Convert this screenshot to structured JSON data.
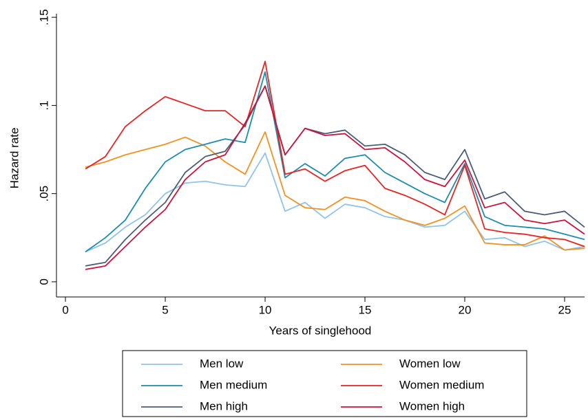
{
  "chart_data": {
    "type": "line",
    "ylabel": "Hazard rate",
    "xlabel": "Years of singlehood",
    "x": [
      1,
      2,
      3,
      4,
      5,
      6,
      7,
      8,
      9,
      10,
      11,
      12,
      13,
      14,
      15,
      16,
      17,
      18,
      19,
      20,
      21,
      22,
      23,
      24,
      25,
      26
    ],
    "series": [
      {
        "name": "Men low",
        "color": "#8fc3ea",
        "values": [
          0.017,
          0.022,
          0.031,
          0.038,
          0.05,
          0.056,
          0.057,
          0.055,
          0.054,
          0.073,
          0.04,
          0.045,
          0.036,
          0.044,
          0.042,
          0.037,
          0.035,
          0.031,
          0.032,
          0.04,
          0.024,
          0.025,
          0.02,
          0.023,
          0.018,
          0.02
        ]
      },
      {
        "name": "Women low",
        "color": "#f5901e",
        "values": [
          0.065,
          0.068,
          0.072,
          0.075,
          0.078,
          0.082,
          0.077,
          0.068,
          0.061,
          0.085,
          0.049,
          0.042,
          0.041,
          0.048,
          0.046,
          0.04,
          0.035,
          0.032,
          0.036,
          0.043,
          0.022,
          0.021,
          0.021,
          0.026,
          0.018,
          0.019
        ]
      },
      {
        "name": "Men medium",
        "color": "#1a8caf",
        "values": [
          0.017,
          0.025,
          0.035,
          0.053,
          0.068,
          0.075,
          0.078,
          0.081,
          0.079,
          0.119,
          0.059,
          0.067,
          0.06,
          0.07,
          0.072,
          0.062,
          0.056,
          0.05,
          0.045,
          0.067,
          0.037,
          0.032,
          0.031,
          0.03,
          0.027,
          0.024
        ]
      },
      {
        "name": "Women medium",
        "color": "#e8231f",
        "values": [
          0.064,
          0.071,
          0.088,
          0.097,
          0.105,
          0.101,
          0.097,
          0.097,
          0.088,
          0.125,
          0.061,
          0.064,
          0.057,
          0.063,
          0.066,
          0.053,
          0.049,
          0.044,
          0.038,
          0.066,
          0.03,
          0.028,
          0.027,
          0.025,
          0.024,
          0.02
        ]
      },
      {
        "name": "Men high",
        "color": "#4a5d75",
        "values": [
          0.009,
          0.011,
          0.024,
          0.035,
          0.045,
          0.062,
          0.071,
          0.074,
          0.089,
          0.111,
          0.072,
          0.087,
          0.084,
          0.086,
          0.077,
          0.078,
          0.072,
          0.062,
          0.058,
          0.075,
          0.047,
          0.051,
          0.04,
          0.038,
          0.04,
          0.031
        ]
      },
      {
        "name": "Women high",
        "color": "#d0103a",
        "values": [
          0.007,
          0.009,
          0.02,
          0.031,
          0.041,
          0.058,
          0.068,
          0.072,
          0.09,
          0.111,
          0.072,
          0.087,
          0.083,
          0.084,
          0.075,
          0.076,
          0.068,
          0.058,
          0.054,
          0.069,
          0.042,
          0.045,
          0.035,
          0.033,
          0.035,
          0.027
        ]
      }
    ],
    "xlim": [
      -0.45,
      26
    ],
    "xticks": [
      0,
      5,
      10,
      15,
      20,
      25
    ],
    "ylim": [
      -0.0086,
      0.152
    ],
    "yticks": [
      0,
      {
        "value": 0.05,
        "label": ".05"
      },
      {
        "value": 0.1,
        "label": ".1"
      },
      {
        "value": 0.15,
        "label": ".15"
      }
    ],
    "grid": false,
    "legend": "bottom"
  }
}
